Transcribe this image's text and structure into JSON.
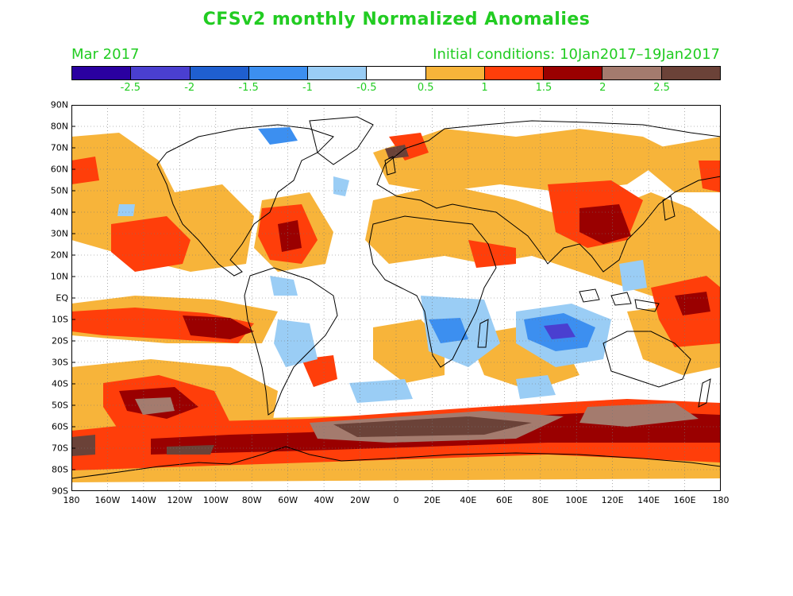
{
  "title": "CFSv2 monthly Normalized Anomalies",
  "month": "Mar 2017",
  "initial_conditions": "Initial conditions: 10Jan2017–19Jan2017",
  "colorbar": {
    "colors": [
      "#2a00a0",
      "#4a3fd0",
      "#1f5fd0",
      "#3c8ff0",
      "#9acdf5",
      "#ffffff",
      "#f7b43a",
      "#ff3e0a",
      "#9a0000",
      "#a47b6e",
      "#6b4238"
    ],
    "labels": [
      "-2.5",
      "-2",
      "-1.5",
      "-1",
      "-0.5",
      "0.5",
      "1",
      "1.5",
      "2",
      "2.5"
    ]
  },
  "map": {
    "lat_labels": [
      "90N",
      "80N",
      "70N",
      "60N",
      "50N",
      "40N",
      "30N",
      "20N",
      "10N",
      "EQ",
      "10S",
      "20S",
      "30S",
      "40S",
      "50S",
      "60S",
      "70S",
      "80S",
      "90S"
    ],
    "lon_labels": [
      "180",
      "160W",
      "140W",
      "120W",
      "100W",
      "80W",
      "60W",
      "40W",
      "20W",
      "0",
      "20E",
      "40E",
      "60E",
      "80E",
      "100E",
      "120E",
      "140E",
      "160E",
      "180"
    ]
  },
  "anomaly_regions": [
    {
      "name": "south-pacific-band",
      "level": "1.5"
    },
    {
      "name": "southern-ocean-belt",
      "level": "2.5"
    },
    {
      "name": "east-asia",
      "level": "2"
    },
    {
      "name": "north-atlantic-gyre",
      "level": "1.5"
    },
    {
      "name": "greenland-east",
      "level": "-1"
    },
    {
      "name": "indian-ocean-south",
      "level": "-2"
    },
    {
      "name": "southern-africa",
      "level": "-1"
    }
  ]
}
